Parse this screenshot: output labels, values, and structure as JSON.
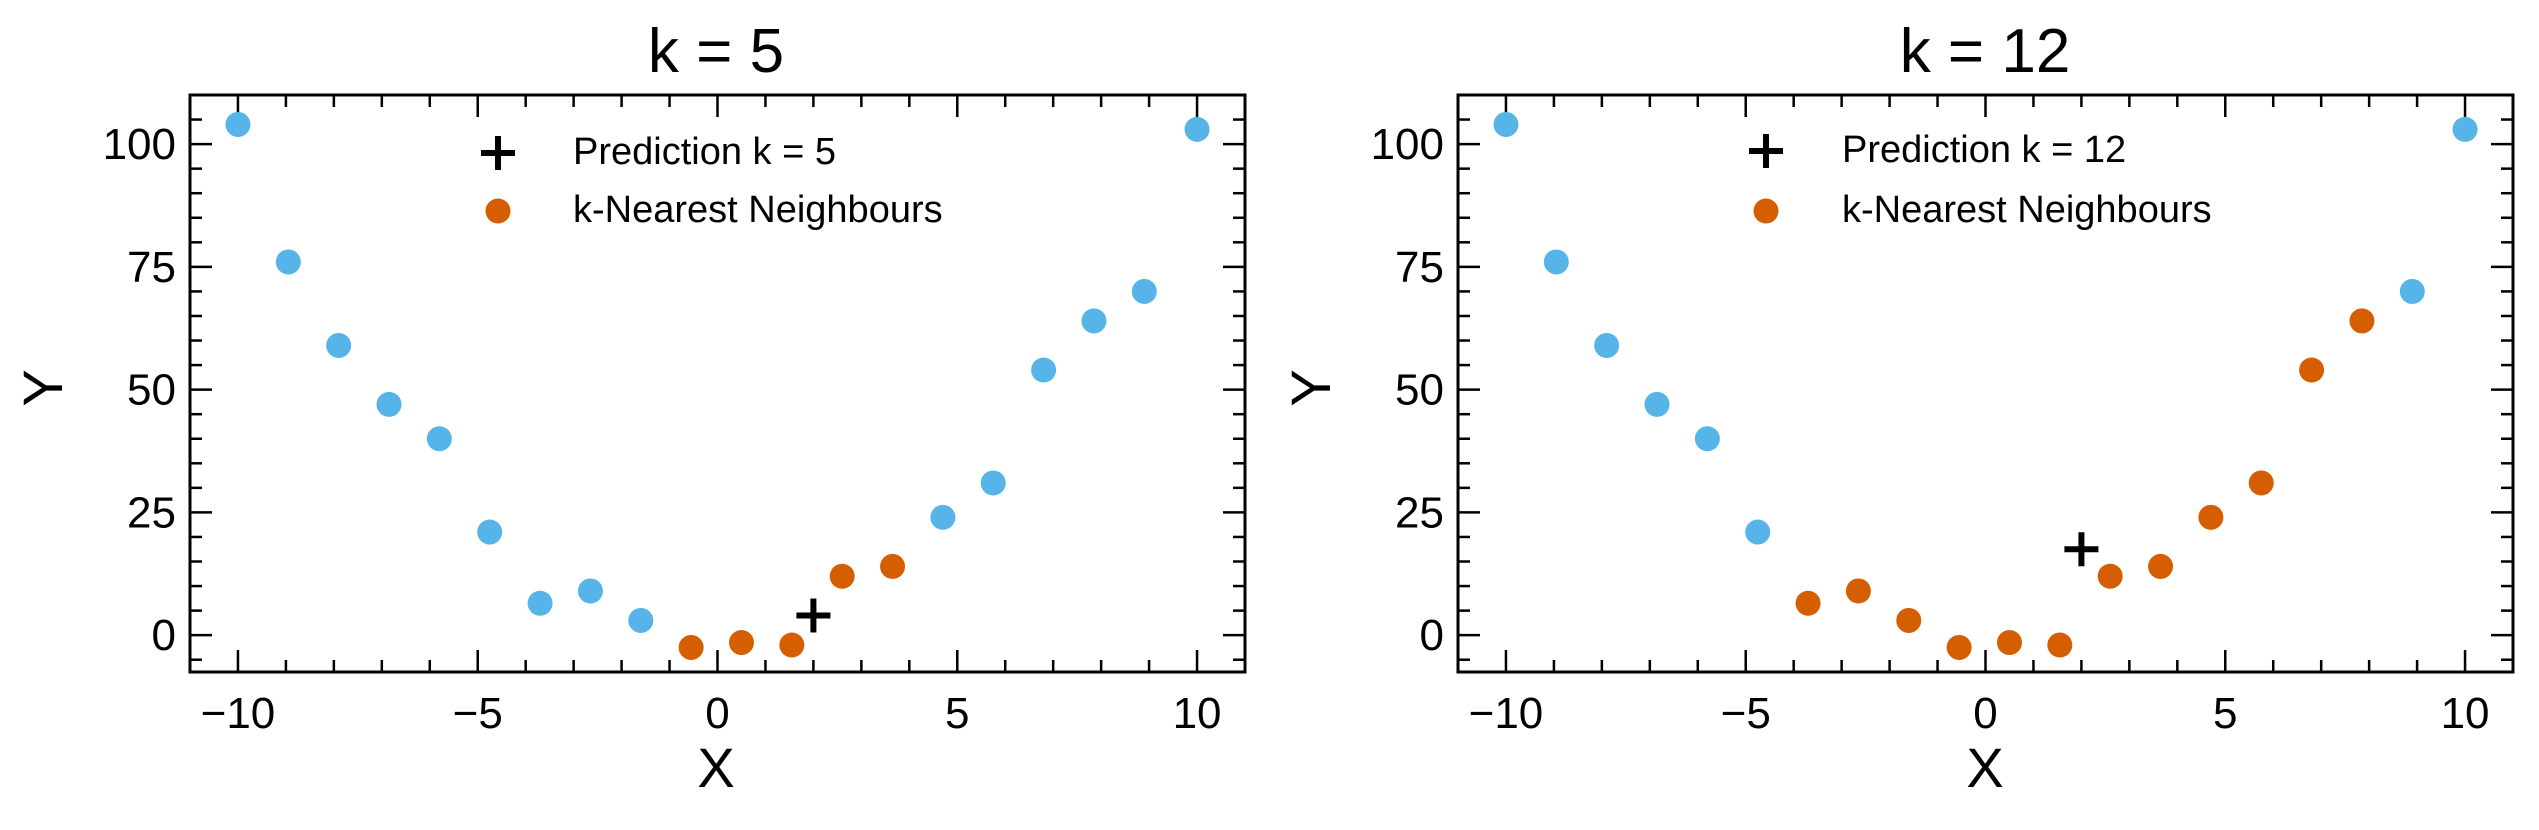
{
  "colors": {
    "data_points": "#56B4E9",
    "neighbours": "#D55E00",
    "prediction": "#000000"
  },
  "chart_data": [
    {
      "type": "scatter",
      "title": "k = 5",
      "xlabel": "X",
      "ylabel": "Y",
      "xlim": [
        -11,
        11
      ],
      "ylim": [
        -7.5,
        110
      ],
      "xticks": [
        -10,
        -5,
        0,
        5,
        10
      ],
      "yticks": [
        0,
        25,
        50,
        75,
        100
      ],
      "xtick_labels": [
        "−10",
        "−5",
        "0",
        "5",
        "10"
      ],
      "ytick_labels": [
        "0",
        "25",
        "50",
        "75",
        "100"
      ],
      "grid": false,
      "legend_position": "top-center",
      "series": [
        {
          "x": [
            -10,
            -8.95,
            -7.9,
            -6.85,
            -5.8,
            -4.75,
            -3.7,
            -2.65,
            -1.6,
            -0.55,
            0.5,
            1.55,
            2.6,
            3.65,
            4.7,
            5.75,
            6.8,
            7.85,
            8.9,
            10
          ],
          "y": [
            104,
            76,
            59,
            47,
            40,
            21,
            6.5,
            9,
            3,
            -2.5,
            -1.5,
            -2,
            12,
            14,
            24,
            31,
            54,
            64,
            70,
            103
          ],
          "neighbour_flags": [
            false,
            false,
            false,
            false,
            false,
            false,
            false,
            false,
            false,
            true,
            true,
            true,
            true,
            true,
            false,
            false,
            false,
            false,
            false,
            false
          ]
        },
        {
          "name": "k-Nearest Neighbours"
        },
        {
          "name": "Prediction k = 5",
          "x": [
            2
          ],
          "y": [
            4
          ]
        }
      ]
    },
    {
      "type": "scatter",
      "title": "k = 12",
      "xlabel": "X",
      "ylabel": "Y",
      "xlim": [
        -11,
        11
      ],
      "ylim": [
        -7.5,
        110
      ],
      "xticks": [
        -10,
        -5,
        0,
        5,
        10
      ],
      "yticks": [
        0,
        25,
        50,
        75,
        100
      ],
      "xtick_labels": [
        "−10",
        "−5",
        "0",
        "5",
        "10"
      ],
      "ytick_labels": [
        "0",
        "25",
        "50",
        "75",
        "100"
      ],
      "grid": false,
      "legend_position": "top-center",
      "series": [
        {
          "x": [
            -10,
            -8.95,
            -7.9,
            -6.85,
            -5.8,
            -4.75,
            -3.7,
            -2.65,
            -1.6,
            -0.55,
            0.5,
            1.55,
            2.6,
            3.65,
            4.7,
            5.75,
            6.8,
            7.85,
            8.9,
            10
          ],
          "y": [
            104,
            76,
            59,
            47,
            40,
            21,
            6.5,
            9,
            3,
            -2.5,
            -1.5,
            -2,
            12,
            14,
            24,
            31,
            54,
            64,
            70,
            103
          ],
          "neighbour_flags": [
            false,
            false,
            false,
            false,
            false,
            false,
            true,
            true,
            true,
            true,
            true,
            true,
            true,
            true,
            true,
            true,
            true,
            true,
            false,
            false
          ]
        },
        {
          "name": "k-Nearest Neighbours"
        },
        {
          "name": "Prediction k = 12",
          "x": [
            2
          ],
          "y": [
            17.5
          ]
        }
      ]
    }
  ]
}
